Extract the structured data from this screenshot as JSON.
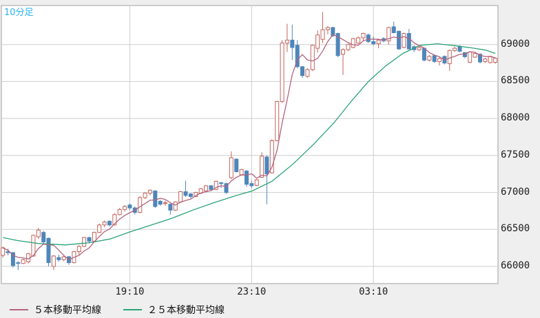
{
  "window": {
    "period_label": "10分足"
  },
  "colors": {
    "page_bg": "#efefef",
    "plot_bg": "#ffffff",
    "plot_border": "#a0a0a0",
    "grid": "#cdcdcd",
    "axis_text": "#1c1c1c",
    "period_label_text": "#2ab5ee",
    "up_candle": "#c1635c",
    "down_candle": "#4e86ba",
    "ma5": "#b2647e",
    "ma25": "#2aa377"
  },
  "legend": [
    {
      "label": "５本移動平均線",
      "color": "#b2647e"
    },
    {
      "label": "２５本移動平均線",
      "color": "#2aa377"
    }
  ],
  "chart_data": {
    "type": "candlestick",
    "interval_label": "10分足",
    "y_ticks": [
      66000,
      66500,
      67000,
      67500,
      68000,
      68500,
      69000
    ],
    "y_range": [
      65767,
      69528
    ],
    "x_ticks": [
      {
        "index": 25,
        "label": "19:10"
      },
      {
        "index": 49,
        "label": "23:10"
      },
      {
        "index": 73,
        "label": "03:10"
      }
    ],
    "candles": [
      [
        66150,
        66270,
        66120,
        66250
      ],
      [
        66200,
        66240,
        66150,
        66185
      ],
      [
        66185,
        66195,
        65985,
        66010
      ],
      [
        66050,
        66070,
        65950,
        66040
      ],
      [
        66040,
        66105,
        66030,
        66090
      ],
      [
        66060,
        66185,
        66040,
        66170
      ],
      [
        66140,
        66430,
        66130,
        66420
      ],
      [
        66400,
        66520,
        66370,
        66490
      ],
      [
        66460,
        66480,
        66300,
        66330
      ],
      [
        66380,
        66390,
        66000,
        66050
      ],
      [
        66000,
        66150,
        65950,
        66140
      ],
      [
        66120,
        66160,
        66060,
        66090
      ],
      [
        66090,
        66140,
        66070,
        66130
      ],
      [
        66130,
        66140,
        66020,
        66050
      ],
      [
        66050,
        66210,
        66040,
        66200
      ],
      [
        66200,
        66290,
        66150,
        66270
      ],
      [
        66270,
        66400,
        66260,
        66390
      ],
      [
        66390,
        66400,
        66310,
        66340
      ],
      [
        66340,
        66470,
        66330,
        66460
      ],
      [
        66460,
        66580,
        66450,
        66560
      ],
      [
        66560,
        66620,
        66530,
        66600
      ],
      [
        66610,
        66620,
        66540,
        66560
      ],
      [
        66560,
        66720,
        66550,
        66700
      ],
      [
        66700,
        66790,
        66690,
        66770
      ],
      [
        66770,
        66830,
        66740,
        66810
      ],
      [
        66830,
        66850,
        66760,
        66790
      ],
      [
        66790,
        66810,
        66700,
        66730
      ],
      [
        66730,
        66950,
        66720,
        66930
      ],
      [
        66930,
        67000,
        66910,
        66990
      ],
      [
        66990,
        67040,
        66960,
        67030
      ],
      [
        67020,
        67030,
        66790,
        66810
      ],
      [
        66880,
        66900,
        66820,
        66840
      ],
      [
        66850,
        66890,
        66820,
        66860
      ],
      [
        66840,
        66850,
        66700,
        66760
      ],
      [
        66760,
        66880,
        66750,
        66870
      ],
      [
        66870,
        67020,
        66860,
        67010
      ],
      [
        67010,
        67160,
        66940,
        66960
      ],
      [
        66980,
        66990,
        66920,
        66945
      ],
      [
        66945,
        67010,
        66935,
        67000
      ],
      [
        66990,
        67060,
        66980,
        67050
      ],
      [
        67020,
        67100,
        67010,
        67090
      ],
      [
        67090,
        67100,
        67020,
        67040
      ],
      [
        67040,
        67160,
        67030,
        67150
      ],
      [
        67130,
        67145,
        67060,
        67120
      ],
      [
        67120,
        67130,
        66980,
        67000
      ],
      [
        67200,
        67555,
        67180,
        67470
      ],
      [
        67450,
        67460,
        67270,
        67280
      ],
      [
        67240,
        67320,
        67230,
        67310
      ],
      [
        67290,
        67300,
        67075,
        67110
      ],
      [
        67120,
        67160,
        67060,
        67090
      ],
      [
        67095,
        67180,
        67085,
        67170
      ],
      [
        67205,
        67545,
        67195,
        67490
      ],
      [
        67480,
        67500,
        66840,
        67250
      ],
      [
        67265,
        67720,
        67255,
        67700
      ],
      [
        67700,
        68240,
        67690,
        68230
      ],
      [
        68230,
        69060,
        68210,
        69020
      ],
      [
        69020,
        69280,
        68900,
        69060
      ],
      [
        69060,
        69270,
        68790,
        68960
      ],
      [
        68990,
        69060,
        68680,
        68700
      ],
      [
        68700,
        68710,
        68550,
        68580
      ],
      [
        68570,
        68680,
        68550,
        68660
      ],
      [
        68660,
        69000,
        68640,
        68990
      ],
      [
        68950,
        69190,
        68890,
        69130
      ],
      [
        69070,
        69440,
        69020,
        69200
      ],
      [
        69200,
        69250,
        69140,
        69230
      ],
      [
        69230,
        69240,
        69100,
        69120
      ],
      [
        69150,
        69160,
        68830,
        68850
      ],
      [
        68870,
        68950,
        68590,
        68930
      ],
      [
        68930,
        69010,
        68910,
        69000
      ],
      [
        68960,
        69090,
        68950,
        69080
      ],
      [
        69020,
        69110,
        69010,
        69090
      ],
      [
        69090,
        69160,
        69050,
        69150
      ],
      [
        69130,
        69150,
        69020,
        69040
      ],
      [
        69040,
        69110,
        68990,
        69010
      ],
      [
        69010,
        69080,
        68950,
        69060
      ],
      [
        69080,
        69100,
        69030,
        69050
      ],
      [
        69050,
        69240,
        69000,
        69230
      ],
      [
        69240,
        69310,
        69150,
        69160
      ],
      [
        69180,
        69190,
        68930,
        68940
      ],
      [
        68960,
        69160,
        68950,
        69150
      ],
      [
        69150,
        69210,
        68930,
        68940
      ],
      [
        68970,
        68990,
        68900,
        68930
      ],
      [
        68930,
        68980,
        68910,
        68960
      ],
      [
        68950,
        68960,
        68770,
        68790
      ],
      [
        68790,
        68860,
        68770,
        68840
      ],
      [
        68850,
        68860,
        68750,
        68770
      ],
      [
        68770,
        68830,
        68715,
        68810
      ],
      [
        68840,
        68850,
        68730,
        68750
      ],
      [
        68740,
        68930,
        68645,
        68920
      ],
      [
        68920,
        68970,
        68900,
        68950
      ],
      [
        68975,
        68990,
        68895,
        68910
      ],
      [
        68890,
        68900,
        68815,
        68835
      ],
      [
        68760,
        68910,
        68750,
        68900
      ],
      [
        68830,
        68900,
        68820,
        68880
      ],
      [
        68870,
        68880,
        68745,
        68765
      ],
      [
        68770,
        68820,
        68750,
        68805
      ],
      [
        68755,
        68850,
        68745,
        68840
      ],
      [
        68760,
        68825,
        68740,
        68815
      ]
    ],
    "ma5_period": 5,
    "ma25_points": [
      [
        0,
        66390
      ],
      [
        2.8,
        66350
      ],
      [
        6.9,
        66310
      ],
      [
        12.3,
        66290
      ],
      [
        17.1,
        66320
      ],
      [
        21.1,
        66370
      ],
      [
        25.2,
        66470
      ],
      [
        29.3,
        66560
      ],
      [
        33.3,
        66650
      ],
      [
        37.4,
        66760
      ],
      [
        41.5,
        66860
      ],
      [
        45.6,
        66950
      ],
      [
        49.1,
        67020
      ],
      [
        53,
        67150
      ],
      [
        57.1,
        67380
      ],
      [
        61.2,
        67650
      ],
      [
        65.2,
        67940
      ],
      [
        68.6,
        68230
      ],
      [
        72,
        68500
      ],
      [
        75.4,
        68710
      ],
      [
        78.8,
        68880
      ],
      [
        82.2,
        68990
      ],
      [
        85.6,
        69010
      ],
      [
        89,
        68985
      ],
      [
        92.4,
        68955
      ],
      [
        95.1,
        68925
      ],
      [
        97,
        68880
      ]
    ]
  }
}
